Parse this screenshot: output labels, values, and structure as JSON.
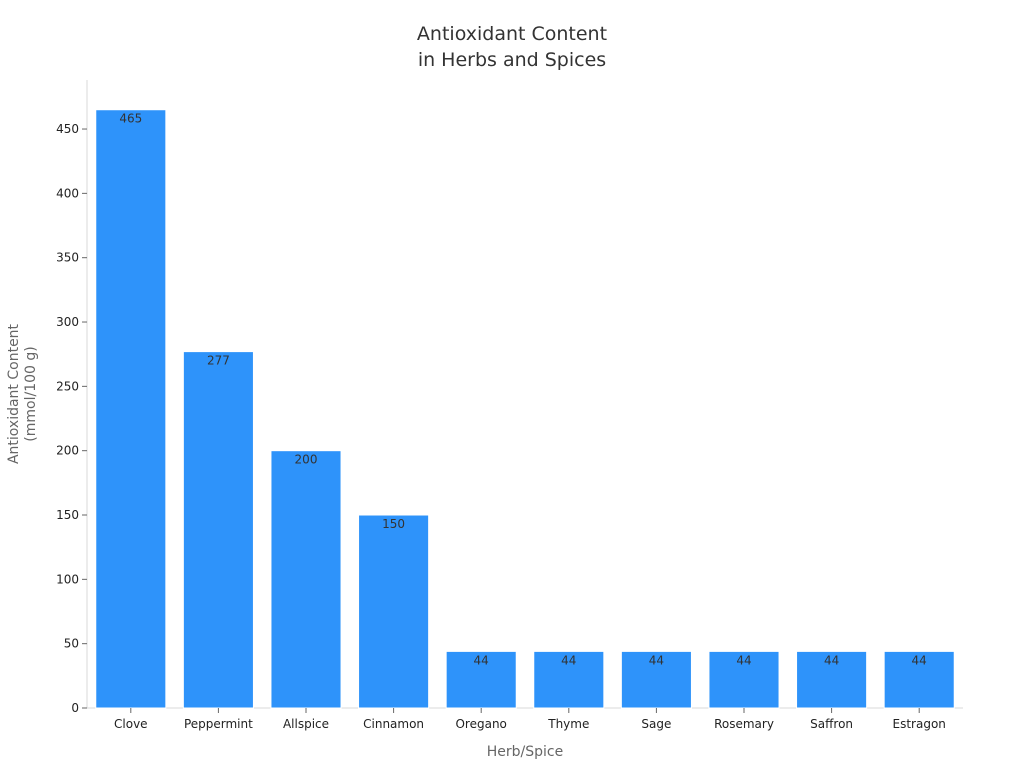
{
  "chart_data": {
    "type": "bar",
    "title_lines": [
      "Antioxidant Content",
      "in Herbs and Spices"
    ],
    "xlabel": "Herb/Spice",
    "ylabel_lines": [
      "Antioxidant Content",
      "(mmol/100 g)"
    ],
    "categories": [
      "Clove",
      "Peppermint",
      "Allspice",
      "Cinnamon",
      "Oregano",
      "Thyme",
      "Sage",
      "Rosemary",
      "Saffron",
      "Estragon"
    ],
    "values": [
      465,
      277,
      200,
      150,
      44,
      44,
      44,
      44,
      44,
      44
    ],
    "data_labels": [
      "465",
      "277",
      "200",
      "150",
      "44",
      "44",
      "44",
      "44",
      "44",
      "44"
    ],
    "yticks": [
      0,
      50,
      100,
      150,
      200,
      250,
      300,
      350,
      400,
      450
    ],
    "ylim": [
      0,
      488
    ],
    "grid": false,
    "legend": "none",
    "bar_color": "#2e93fa",
    "bar_edge_color": "#ffffff"
  }
}
